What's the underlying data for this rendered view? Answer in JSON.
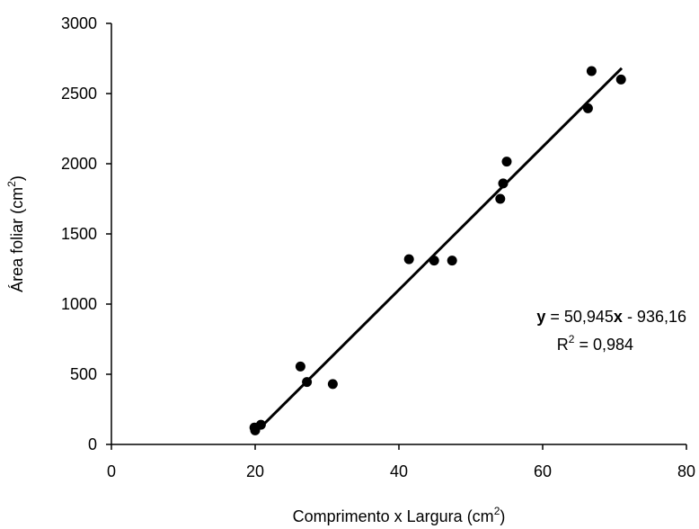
{
  "chart_data": {
    "type": "scatter",
    "title": "",
    "xlabel": "Comprimento x Largura (cm²)",
    "ylabel": "Área foliar (cm²)",
    "xlim": [
      0,
      80
    ],
    "ylim": [
      0,
      3000
    ],
    "x_ticks": [
      0,
      20,
      40,
      60,
      80
    ],
    "y_ticks": [
      0,
      500,
      1000,
      1500,
      2000,
      2500,
      3000
    ],
    "grid": false,
    "legend": "none",
    "marker_color": "#000000",
    "series": [
      {
        "points": [
          {
            "x": 19.9,
            "y": 120
          },
          {
            "x": 20.0,
            "y": 100
          },
          {
            "x": 20.8,
            "y": 140
          },
          {
            "x": 26.3,
            "y": 555
          },
          {
            "x": 27.2,
            "y": 445
          },
          {
            "x": 30.8,
            "y": 430
          },
          {
            "x": 41.4,
            "y": 1320
          },
          {
            "x": 44.9,
            "y": 1310
          },
          {
            "x": 47.4,
            "y": 1310
          },
          {
            "x": 54.1,
            "y": 1750
          },
          {
            "x": 54.5,
            "y": 1860
          },
          {
            "x": 55.0,
            "y": 2015
          },
          {
            "x": 66.3,
            "y": 2395
          },
          {
            "x": 66.8,
            "y": 2660
          },
          {
            "x": 70.9,
            "y": 2600
          }
        ]
      }
    ],
    "trendline": {
      "slope": 50.945,
      "intercept": -936.16,
      "x_range": [
        20,
        71
      ],
      "equation": {
        "y_symbol": "y",
        "mid": " = 50,945",
        "x_symbol": "x",
        "tail": " - 936,16"
      },
      "r2": {
        "prefix": "R",
        "sup": "2",
        "value": " = 0,984"
      }
    },
    "axis_labels": {
      "x": {
        "main": "Comprimento x Largura (cm",
        "sup": "2",
        "end": ")"
      },
      "y": {
        "main": "Área foliar (cm",
        "sup": "2",
        "end": ")"
      }
    }
  }
}
